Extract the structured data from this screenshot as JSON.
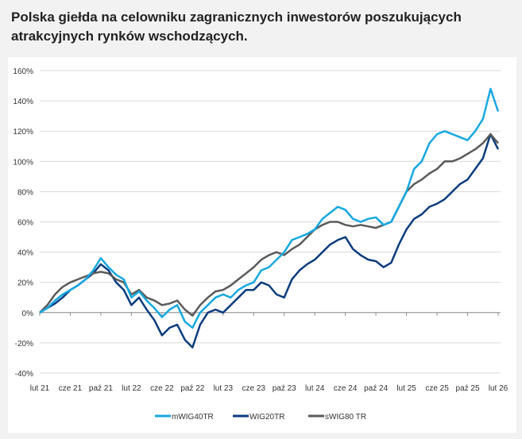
{
  "title": "Polska giełda na celowniku zagranicznych inwestorów poszukujących atrakcyjnych rynków wschodzących.",
  "chart_data": {
    "type": "line",
    "title": "Polska giełda na celowniku zagranicznych inwestorów poszukujących atrakcyjnych rynków wschodzących.",
    "ylim": [
      -40,
      160
    ],
    "yticks": [
      "-40%",
      "-20%",
      "0%",
      "20%",
      "40%",
      "60%",
      "80%",
      "100%",
      "120%",
      "140%",
      "160%"
    ],
    "ytick_values": [
      -40,
      -20,
      0,
      20,
      40,
      60,
      80,
      100,
      120,
      140,
      160
    ],
    "xticks": [
      "lut 21",
      "cze 21",
      "paź 21",
      "lut 22",
      "cze 22",
      "paź 22",
      "lut 23",
      "cze 23",
      "paź 23",
      "lut 24",
      "cze 24",
      "paź 24",
      "lut 25",
      "cze 25",
      "paź 25",
      "lut 26"
    ],
    "x_unit": "months since Feb 2021",
    "grid": true,
    "legend_position": "bottom",
    "series": [
      {
        "name": "mWIG40TR",
        "color": "#16a8e0",
        "values": [
          0,
          3,
          8,
          12,
          15,
          18,
          22,
          28,
          36,
          30,
          25,
          22,
          10,
          14,
          8,
          3,
          -3,
          2,
          5,
          -6,
          -10,
          0,
          5,
          10,
          12,
          10,
          15,
          18,
          20,
          28,
          30,
          35,
          40,
          48,
          50,
          52,
          55,
          62,
          66,
          70,
          68,
          62,
          60,
          62,
          63,
          58,
          60,
          70,
          80,
          95,
          100,
          112,
          118,
          120,
          118,
          116,
          114,
          120,
          128,
          148,
          133
        ]
      },
      {
        "name": "WIG20TR",
        "color": "#0b3c7d",
        "values": [
          0,
          3,
          6,
          10,
          15,
          18,
          22,
          26,
          32,
          28,
          20,
          15,
          5,
          10,
          2,
          -5,
          -15,
          -10,
          -8,
          -18,
          -23,
          -8,
          0,
          2,
          0,
          5,
          10,
          15,
          15,
          20,
          18,
          12,
          10,
          22,
          28,
          32,
          35,
          40,
          45,
          48,
          50,
          42,
          38,
          35,
          34,
          30,
          33,
          45,
          55,
          62,
          65,
          70,
          72,
          75,
          80,
          85,
          88,
          95,
          102,
          118,
          108
        ]
      },
      {
        "name": "sWIG80 TR",
        "color": "#5a5a5a",
        "values": [
          0,
          5,
          12,
          17,
          20,
          22,
          24,
          26,
          27,
          26,
          22,
          20,
          12,
          15,
          10,
          8,
          5,
          6,
          8,
          2,
          -2,
          5,
          10,
          14,
          15,
          18,
          22,
          26,
          30,
          35,
          38,
          40,
          38,
          42,
          45,
          50,
          55,
          58,
          60,
          60,
          58,
          57,
          58,
          57,
          56,
          58,
          60,
          70,
          80,
          85,
          88,
          92,
          95,
          100,
          100,
          102,
          105,
          108,
          112,
          118,
          112
        ]
      }
    ]
  }
}
